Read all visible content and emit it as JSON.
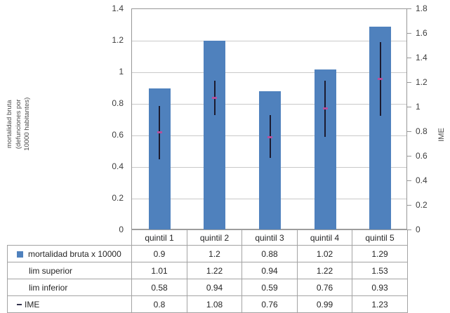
{
  "chart_data": {
    "type": "bar",
    "categories": [
      "quintil 1",
      "quintil 2",
      "quintil 3",
      "quintil 4",
      "quintil 5"
    ],
    "series": [
      {
        "name": "mortalidad bruta x 10000",
        "type": "bar",
        "axis": "left",
        "color": "#4f81bd",
        "values": [
          0.9,
          1.2,
          0.88,
          1.02,
          1.29
        ]
      },
      {
        "name": "lim superior",
        "type": "error_upper",
        "axis": "right",
        "values": [
          1.01,
          1.22,
          0.94,
          1.22,
          1.53
        ]
      },
      {
        "name": "lim inferior",
        "type": "error_lower",
        "axis": "right",
        "values": [
          0.58,
          0.94,
          0.59,
          0.76,
          0.93
        ]
      },
      {
        "name": "IME",
        "type": "marker",
        "axis": "right",
        "color": "#b4509b",
        "values": [
          0.8,
          1.08,
          0.76,
          0.99,
          1.23
        ]
      }
    ],
    "left_axis": {
      "label": "mortalidad bruta\n(defunciones por\n10000 habitantes)",
      "min": 0,
      "max": 1.4,
      "step": 0.2,
      "ticks": [
        "1.4",
        "1.2",
        "1",
        "0.8",
        "0.6",
        "0.4",
        "0.2",
        "0"
      ]
    },
    "right_axis": {
      "label": "IME",
      "min": 0,
      "max": 1.8,
      "step": 0.2,
      "ticks": [
        "1.8",
        "1.6",
        "1.4",
        "1.2",
        "1",
        "0.8",
        "0.6",
        "0.4",
        "0.2",
        "0"
      ]
    },
    "grid": true,
    "error_bar_color": "#1b1b30",
    "legend_position": "data-table"
  },
  "table": {
    "columns": [
      "quintil 1",
      "quintil 2",
      "quintil 3",
      "quintil 4",
      "quintil 5"
    ],
    "rows": [
      {
        "label": "mortalidad bruta x 10000",
        "key": "blue-square",
        "values": [
          "0.9",
          "1.2",
          "0.88",
          "1.02",
          "1.29"
        ]
      },
      {
        "label": "lim superior",
        "key": "none",
        "values": [
          "1.01",
          "1.22",
          "0.94",
          "1.22",
          "1.53"
        ]
      },
      {
        "label": "lim inferior",
        "key": "none",
        "values": [
          "0.58",
          "0.94",
          "0.59",
          "0.76",
          "0.93"
        ]
      },
      {
        "label": "IME",
        "key": "dash",
        "values": [
          "0.8",
          "1.08",
          "0.76",
          "0.99",
          "1.23"
        ]
      }
    ]
  }
}
